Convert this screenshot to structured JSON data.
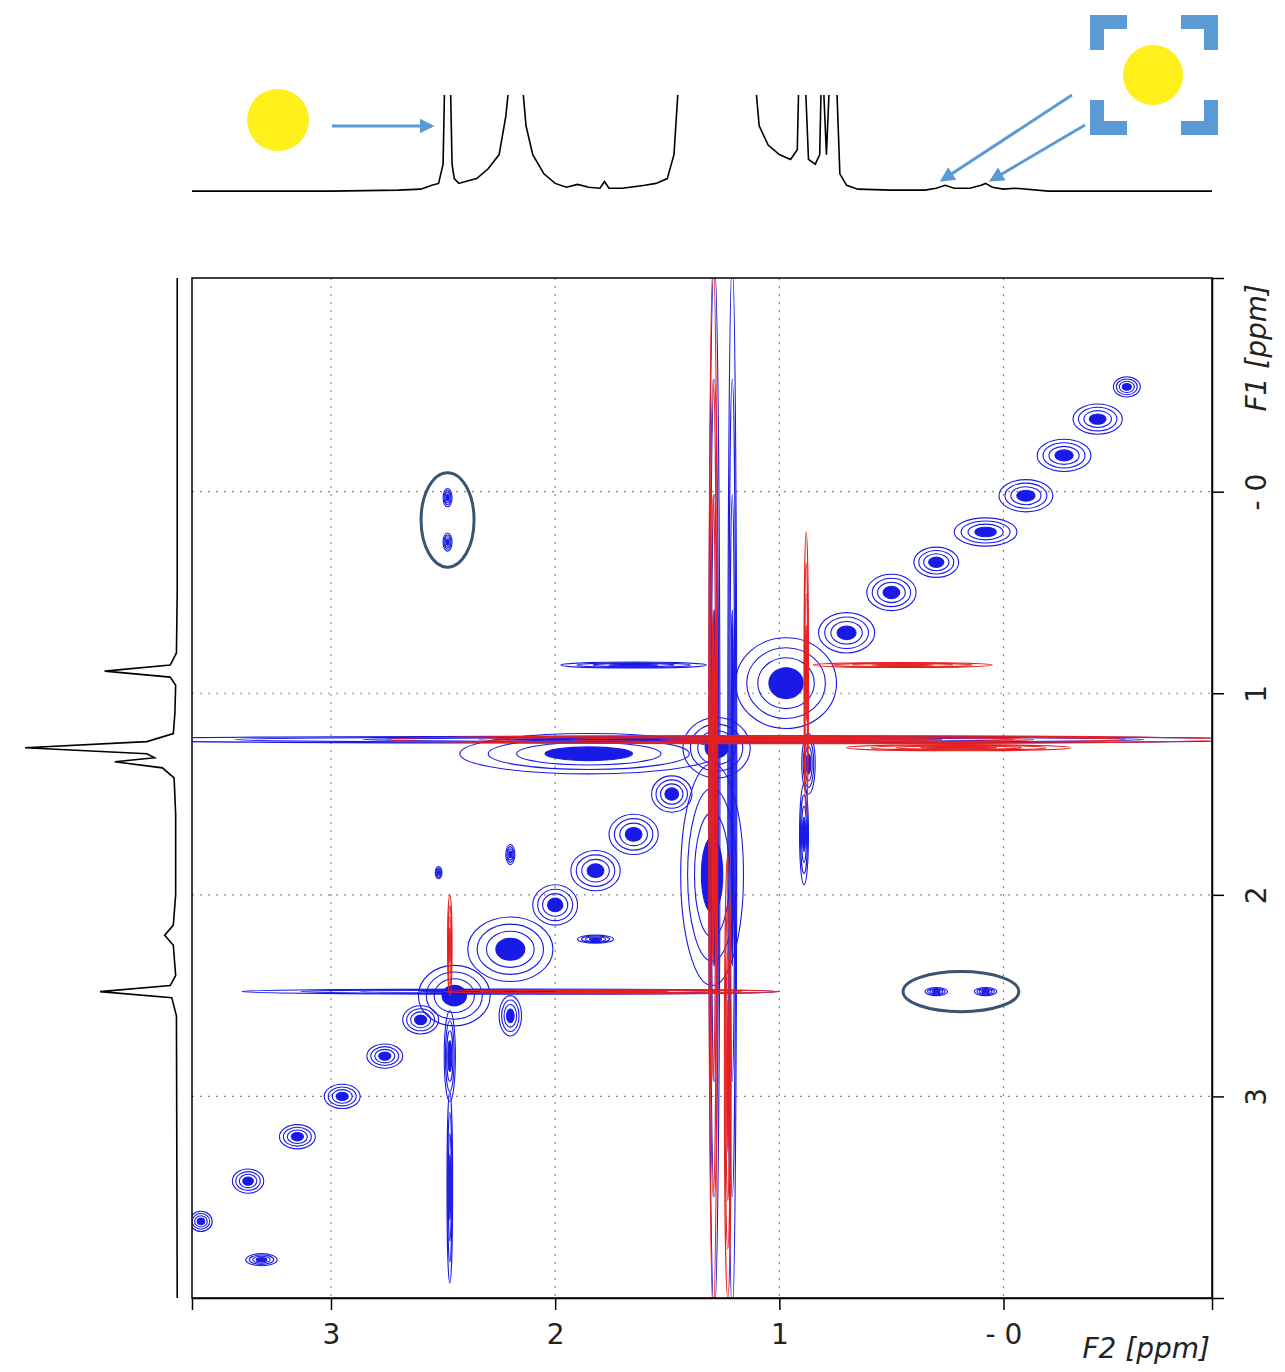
{
  "chart_data": {
    "type": "contour",
    "x_label": "F2 [ppm]",
    "y_label": "F1 [ppm]",
    "xlim": [
      3.62,
      -0.93
    ],
    "ylim": [
      -1.06,
      4.0
    ],
    "xticks": [
      3,
      2,
      1,
      {
        "value": 0,
        "label": "- 0"
      }
    ],
    "yticks": [
      {
        "value": 0,
        "label": "- 0"
      },
      1,
      2,
      3
    ],
    "grid": true,
    "series": [
      {
        "color": "#1a1ae6",
        "x": [
          3.58,
          3.37,
          3.31,
          3.15,
          2.95,
          2.76,
          2.6,
          2.45,
          2.2,
          2.0,
          1.82,
          1.65,
          1.48,
          1.3,
          1.85,
          1.28,
          0.97,
          0.7,
          0.5,
          0.3,
          0.08,
          -0.1,
          -0.27,
          -0.42,
          -0.55,
          2.2,
          2.52,
          1.82,
          2.2,
          2.47,
          2.47,
          0.89,
          0.87,
          1.65,
          2.2,
          1.4,
          1.29,
          1.21
        ],
        "y": [
          3.62,
          3.42,
          3.81,
          3.2,
          3.0,
          2.8,
          2.62,
          2.5,
          2.27,
          2.05,
          1.88,
          1.7,
          1.5,
          1.9,
          1.3,
          1.27,
          0.95,
          0.7,
          0.5,
          0.35,
          0.2,
          0.02,
          -0.18,
          -0.36,
          -0.52,
          1.8,
          1.89,
          2.22,
          2.6,
          2.8,
          3.45,
          1.7,
          1.35,
          0.86,
          2.48,
          1.23,
          1.47,
          1.47
        ],
        "x_width": [
          0.1,
          0.14,
          0.14,
          0.16,
          0.16,
          0.16,
          0.16,
          0.32,
          0.38,
          0.2,
          0.22,
          0.22,
          0.18,
          0.28,
          1.15,
          0.3,
          0.45,
          0.25,
          0.22,
          0.2,
          0.28,
          0.24,
          0.24,
          0.22,
          0.12,
          0.04,
          0.03,
          0.16,
          0.1,
          0.05,
          0.025,
          0.04,
          0.06,
          0.65,
          2.4,
          5.2,
          0.05,
          0.04
        ],
        "y_width": [
          0.1,
          0.12,
          0.06,
          0.12,
          0.12,
          0.12,
          0.14,
          0.3,
          0.32,
          0.2,
          0.2,
          0.2,
          0.18,
          1.1,
          0.2,
          0.3,
          0.45,
          0.2,
          0.18,
          0.15,
          0.14,
          0.16,
          0.16,
          0.15,
          0.1,
          0.1,
          0.06,
          0.04,
          0.2,
          0.45,
          0.95,
          0.5,
          0.3,
          0.03,
          0.025,
          0.035,
          5.2,
          5.2
        ]
      },
      {
        "color": "#e62020",
        "x": [
          1.295,
          1.23,
          0.9,
          0.45,
          0.88,
          1.75,
          2.47,
          0.2
        ],
        "y": [
          1.47,
          2.9,
          1.23,
          0.86,
          0.9,
          2.48,
          2.25,
          1.27
        ],
        "x_width": [
          0.04,
          0.03,
          3.7,
          0.8,
          0.02,
          1.5,
          0.02,
          1.0
        ],
        "y_width": [
          5.2,
          2.2,
          0.04,
          0.025,
          1.4,
          0.02,
          0.5,
          0.03
        ]
      },
      {
        "color": "#1a1ae6",
        "marker": "circled",
        "x": [
          2.48,
          2.48,
          0.3,
          0.08
        ],
        "y": [
          0.03,
          0.25,
          2.48,
          2.48
        ],
        "x_width": [
          0.04,
          0.04,
          0.1,
          0.1
        ],
        "y_width": [
          0.09,
          0.09,
          0.04,
          0.04
        ]
      }
    ],
    "projection_f2": {
      "color": "#000000",
      "ylim": [
        0,
        100
      ],
      "x": [
        3.62,
        3.0,
        2.7,
        2.6,
        2.55,
        2.52,
        2.5,
        2.49,
        2.47,
        2.46,
        2.45,
        2.43,
        2.4,
        2.35,
        2.3,
        2.25,
        2.22,
        2.19,
        2.16,
        2.13,
        2.1,
        2.05,
        2.0,
        1.95,
        1.9,
        1.85,
        1.8,
        1.78,
        1.76,
        1.7,
        1.6,
        1.55,
        1.5,
        1.47,
        1.44,
        1.4,
        1.3,
        1.2,
        1.12,
        1.09,
        1.05,
        1.0,
        0.95,
        0.92,
        0.91,
        0.89,
        0.87,
        0.84,
        0.82,
        0.81,
        0.79,
        0.77,
        0.75,
        0.73,
        0.7,
        0.65,
        0.5,
        0.35,
        0.3,
        0.26,
        0.22,
        0.15,
        0.1,
        0.08,
        0.05,
        0.0,
        -0.05,
        -0.2,
        -0.93
      ],
      "values": [
        2,
        2,
        3,
        4,
        8,
        10,
        30,
        150,
        150,
        30,
        15,
        10,
        12,
        15,
        25,
        40,
        80,
        150,
        150,
        70,
        40,
        20,
        10,
        6,
        9,
        6,
        5,
        12,
        5,
        5,
        8,
        10,
        15,
        40,
        150,
        150,
        150,
        150,
        150,
        70,
        50,
        40,
        35,
        45,
        150,
        150,
        35,
        30,
        40,
        150,
        40,
        150,
        150,
        20,
        8,
        4,
        3,
        3,
        5,
        8,
        5,
        5,
        8,
        10,
        6,
        4,
        5,
        2,
        2
      ]
    },
    "projection_f1": {
      "color": "#000000",
      "xlim": [
        0,
        200
      ],
      "y": [
        -1.06,
        0.5,
        0.8,
        0.86,
        0.89,
        0.92,
        0.96,
        1.1,
        1.2,
        1.24,
        1.27,
        1.3,
        1.32,
        1.34,
        1.37,
        1.42,
        1.6,
        2.0,
        2.15,
        2.2,
        2.25,
        2.4,
        2.45,
        2.48,
        2.51,
        2.6,
        4.0
      ],
      "values": [
        1,
        1,
        2,
        10,
        94,
        10,
        3,
        4,
        6,
        40,
        196,
        40,
        30,
        81,
        20,
        5,
        3,
        3,
        6,
        17,
        6,
        3,
        10,
        100,
        8,
        2,
        1
      ]
    }
  }
}
